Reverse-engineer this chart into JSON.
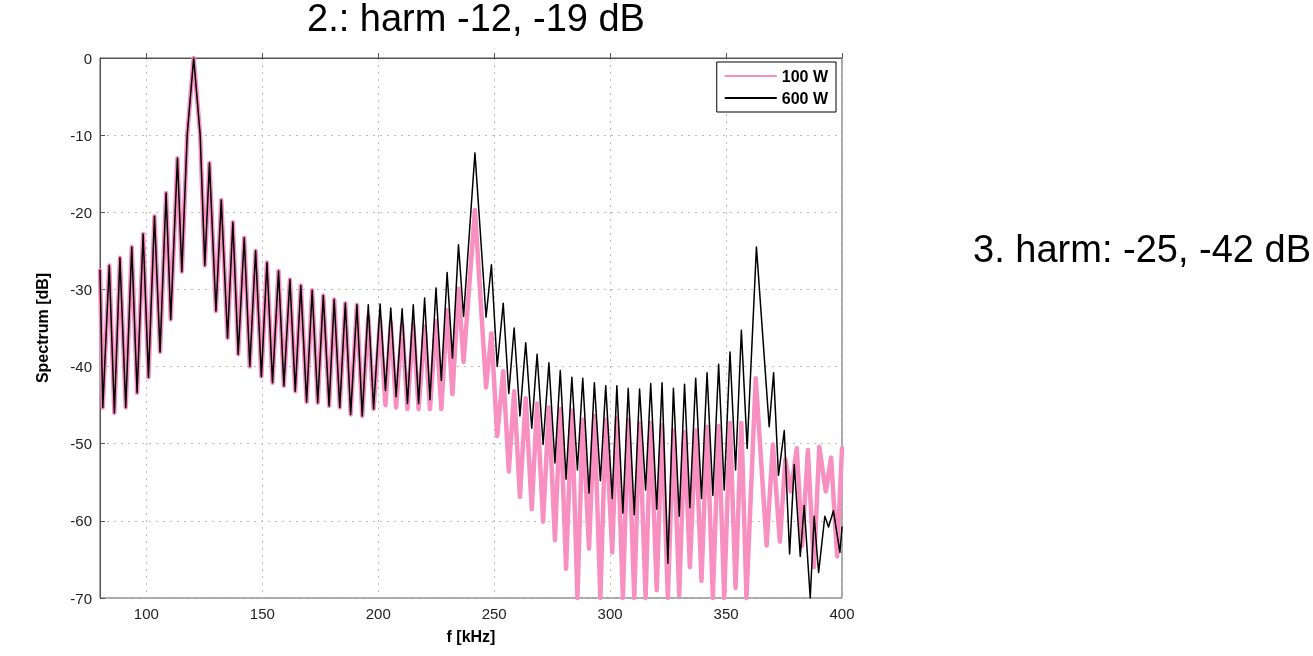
{
  "chart_data": {
    "type": "line",
    "title": "2.: harm -12, -19 dB",
    "xlabel": "f [kHz]",
    "ylabel": "Spectrum [dB]",
    "annotations": [
      "3. harm: -25, -42 dB"
    ],
    "xlim": [
      80,
      400
    ],
    "xticks": [
      100,
      150,
      200,
      250,
      300,
      350,
      400
    ],
    "ylim": [
      -70,
      0
    ],
    "yticks": [
      -70,
      -60,
      -50,
      -40,
      -30,
      -20,
      -10,
      0
    ],
    "grid": true,
    "legend": "top right",
    "marker": "none",
    "line_style": "solid",
    "series": [
      {
        "name": "100 W",
        "color": "#f78fc0",
        "x": [
          80,
          81.2,
          84.0,
          86.2,
          88.6,
          91.1,
          93.7,
          96.0,
          98.6,
          100.9,
          103.5,
          105.9,
          108.5,
          110.5,
          113.4,
          115.3,
          117.6,
          120.4,
          123.2,
          125.2,
          127.2,
          130.0,
          132.3,
          135.0,
          137.3,
          139.6,
          142.2,
          144.6,
          147.1,
          149.6,
          152.0,
          154.4,
          157.0,
          159.3,
          161.9,
          164.2,
          166.6,
          169.1,
          171.5,
          173.9,
          176.3,
          178.8,
          181.0,
          183.4,
          185.8,
          188.1,
          190.8,
          193.1,
          195.7,
          198.0,
          200.8,
          203.1,
          205.4,
          207.7,
          210.3,
          212.6,
          215.1,
          217.4,
          220.0,
          222.3,
          224.9,
          227.2,
          229.7,
          232.0,
          234.6,
          236.8,
          241.7,
          246.5,
          248.8,
          251.3,
          253.9,
          256.3,
          258.6,
          261.1,
          263.6,
          266.2,
          268.5,
          271.1,
          273.6,
          276.2,
          278.5,
          281.0,
          283.5,
          285.9,
          288.2,
          290.9,
          293.2,
          295.8,
          298.1,
          300.9,
          302.9,
          305.5,
          307.8,
          310.4,
          312.7,
          315.3,
          317.5,
          320.1,
          322.4,
          324.9,
          327.3,
          329.8,
          332.1,
          334.4,
          336.9,
          339.4,
          341.8,
          344.3,
          346.8,
          349.2,
          351.7,
          354.1,
          356.6,
          358.8,
          362.8,
          367.5,
          370.2,
          373.2,
          375.6,
          377.9,
          380.5,
          382.8,
          385.3,
          387.9,
          390.2,
          393.0,
          395.3,
          397.9,
          400
        ],
        "values": [
          -27.5,
          -45.3,
          -26.9,
          -46,
          -25.9,
          -45.3,
          -24.5,
          -43.4,
          -22.8,
          -41.4,
          -20.5,
          -38.1,
          -17.5,
          -33.9,
          -13,
          -27.7,
          -10,
          0,
          -10,
          -26.9,
          -13.6,
          -32.8,
          -18.4,
          -36.3,
          -21.3,
          -38.4,
          -23.3,
          -40,
          -25,
          -41.3,
          -26.5,
          -42.1,
          -27.6,
          -42.5,
          -28.7,
          -43.2,
          -29.5,
          -44.6,
          -30.1,
          -44.7,
          -30.8,
          -45.1,
          -31.3,
          -45.3,
          -31.8,
          -46.2,
          -32,
          -46.4,
          -33.5,
          -45.5,
          -34,
          -45,
          -34.3,
          -45.3,
          -34.5,
          -45.5,
          -34.5,
          -45.5,
          -34.8,
          -45.5,
          -34.1,
          -45.5,
          -32.7,
          -43.6,
          -29.9,
          -39.4,
          -19.7,
          -42.7,
          -35.7,
          -49,
          -40.6,
          -53.6,
          -43.2,
          -56.9,
          -44.1,
          -58.5,
          -44.8,
          -60.1,
          -45.3,
          -62.5,
          -45.5,
          -66.2,
          -45.7,
          -70,
          -46.9,
          -63.6,
          -46.4,
          -70,
          -46.9,
          -64.1,
          -46.7,
          -70,
          -46.9,
          -70,
          -47.3,
          -70,
          -47.3,
          -69,
          -47.6,
          -70,
          -48.3,
          -69.7,
          -48.5,
          -66,
          -48.3,
          -67.8,
          -47.8,
          -70,
          -47.7,
          -70,
          -47.3,
          -68.7,
          -47.3,
          -70,
          -41.5,
          -63.2,
          -50.1,
          -62.7,
          -52,
          -56.2,
          -50.6,
          -63.2,
          -50.8,
          -66,
          -50.4,
          -56.2,
          -51.8,
          -64.6,
          -50.6
        ]
      },
      {
        "name": "600 W",
        "color": "#000000",
        "x": [
          80,
          81.2,
          84.0,
          86.2,
          88.6,
          91.1,
          93.7,
          96.0,
          98.6,
          100.9,
          103.5,
          105.9,
          108.5,
          110.5,
          113.4,
          115.3,
          117.6,
          120.4,
          123.2,
          125.2,
          127.2,
          130.0,
          132.3,
          135.0,
          137.3,
          139.6,
          142.2,
          144.6,
          147.1,
          149.6,
          152.0,
          154.4,
          157.0,
          159.3,
          161.9,
          164.2,
          166.6,
          169.1,
          171.5,
          173.9,
          176.3,
          178.8,
          181.0,
          183.4,
          185.8,
          188.1,
          190.8,
          193.1,
          195.7,
          198.0,
          200.8,
          203.1,
          205.4,
          207.7,
          210.3,
          212.6,
          215.1,
          217.4,
          220.0,
          222.3,
          224.9,
          227.2,
          229.7,
          232.0,
          234.6,
          236.8,
          241.7,
          246.5,
          248.8,
          251.3,
          253.9,
          256.3,
          258.6,
          261.1,
          263.6,
          266.2,
          268.5,
          271.1,
          273.6,
          276.2,
          278.5,
          281.0,
          283.5,
          285.9,
          288.2,
          290.9,
          293.2,
          295.8,
          298.1,
          300.9,
          302.9,
          305.5,
          307.8,
          310.4,
          312.7,
          315.3,
          317.5,
          320.1,
          322.4,
          324.9,
          327.3,
          329.8,
          332.1,
          334.4,
          336.9,
          339.4,
          341.8,
          344.3,
          346.8,
          349.2,
          351.7,
          354.1,
          356.6,
          359.1,
          363.1,
          368.6,
          370.5,
          372.6,
          375.1,
          377.4,
          379.4,
          382.0,
          383.7,
          386.3,
          388.0,
          389.9,
          392.6,
          394.2,
          396.3,
          399.1,
          400
        ],
        "values": [
          -27.5,
          -45.3,
          -26.9,
          -46,
          -25.9,
          -45.3,
          -24.5,
          -43.4,
          -22.8,
          -41.4,
          -20.5,
          -38.1,
          -17.5,
          -33.9,
          -13,
          -27.7,
          -10,
          0,
          -10,
          -26.9,
          -13.6,
          -32.8,
          -18.4,
          -36.3,
          -21.3,
          -38.4,
          -23.3,
          -40,
          -25,
          -41.3,
          -26.5,
          -42.1,
          -27.6,
          -42.5,
          -28.7,
          -43.2,
          -29.5,
          -44.6,
          -30.1,
          -44.7,
          -30.8,
          -45.1,
          -31.3,
          -45.3,
          -31.8,
          -46.2,
          -32,
          -46.4,
          -32,
          -45.5,
          -31.9,
          -43.1,
          -32.4,
          -43.9,
          -32.5,
          -44.8,
          -32,
          -44.8,
          -31.1,
          -44.3,
          -29.8,
          -41.8,
          -27.8,
          -38.9,
          -24.2,
          -33.5,
          -12.3,
          -33.6,
          -26.8,
          -40,
          -31.8,
          -43.5,
          -35,
          -46.4,
          -36.9,
          -48,
          -38.4,
          -50.1,
          -39.5,
          -52.5,
          -40.5,
          -54.6,
          -41.4,
          -53.4,
          -41.5,
          -56.4,
          -42.1,
          -54.8,
          -42.5,
          -57.1,
          -42.5,
          -59,
          -42.8,
          -59.2,
          -42.9,
          -56,
          -42.2,
          -58.5,
          -42.1,
          -65.5,
          -42.8,
          -59.4,
          -42.3,
          -58.3,
          -41.5,
          -57.1,
          -40.8,
          -56.7,
          -39.7,
          -56,
          -38.1,
          -53.4,
          -35.3,
          -50.6,
          -24.5,
          -47.8,
          -40.8,
          -54.1,
          -48.3,
          -64.3,
          -52.7,
          -64.6,
          -58,
          -70,
          -59.4,
          -66.7,
          -59.4,
          -60.8,
          -58.7,
          -64.1,
          -60.8
        ]
      }
    ]
  }
}
